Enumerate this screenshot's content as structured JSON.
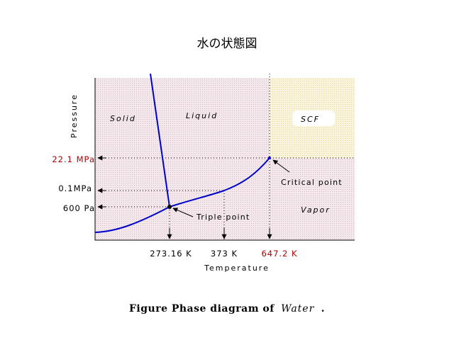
{
  "title": "水の状態図",
  "axes": {
    "y_label": "Pressure",
    "x_label": "Temperature"
  },
  "regions": {
    "solid": "Solid",
    "liquid": "Liquid",
    "scf": "SCF",
    "vapor": "Vapor"
  },
  "pressure_ticks": [
    "22.1 MPa",
    "0.1MPa",
    "600 Pa"
  ],
  "temperature_ticks": [
    "273.16 K",
    "373 K",
    "647.2 K"
  ],
  "points": {
    "critical": "Critical point",
    "triple": "Triple point"
  },
  "caption": {
    "prefix": "Figure  Phase diagram of",
    "subject": "Water",
    "suffix": "."
  },
  "colors": {
    "curve": "#0000cc",
    "highlight": "#b00000",
    "background": "#f2e6ea",
    "scf_region": "#f8f1d6"
  }
}
